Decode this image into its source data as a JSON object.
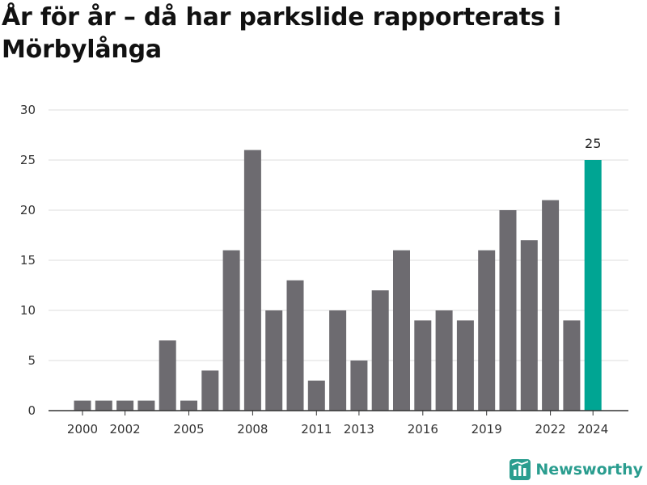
{
  "title": "År för år – då har parkslide rapporterats i Mörbylånga",
  "brand": {
    "name": "Newsworthy",
    "icon": "newsworthy-logo-icon"
  },
  "colors": {
    "bar": "#6d6b70",
    "highlight": "#00a593",
    "grid": "#dcdcdc",
    "axis": "#333333",
    "brand": "#2a9d8f"
  },
  "chart_data": {
    "type": "bar",
    "title": "År för år – då har parkslide rapporterats i Mörbylånga",
    "xlabel": "",
    "ylabel": "",
    "categories": [
      2000,
      2001,
      2002,
      2003,
      2004,
      2005,
      2006,
      2007,
      2008,
      2009,
      2010,
      2011,
      2012,
      2013,
      2014,
      2015,
      2016,
      2017,
      2018,
      2019,
      2020,
      2021,
      2022,
      2023,
      2024
    ],
    "values": [
      1,
      1,
      1,
      1,
      7,
      1,
      4,
      16,
      26,
      10,
      13,
      3,
      10,
      5,
      12,
      16,
      9,
      10,
      9,
      16,
      20,
      17,
      21,
      9,
      25
    ],
    "xticks": [
      "2000",
      "2002",
      "2005",
      "2008",
      "2011",
      "2013",
      "2016",
      "2019",
      "2022",
      "2024"
    ],
    "yticks": [
      0,
      5,
      10,
      15,
      20,
      25,
      30
    ],
    "ylim": [
      0,
      30
    ],
    "grid": true,
    "highlight": {
      "category": 2024,
      "label": "25"
    }
  }
}
